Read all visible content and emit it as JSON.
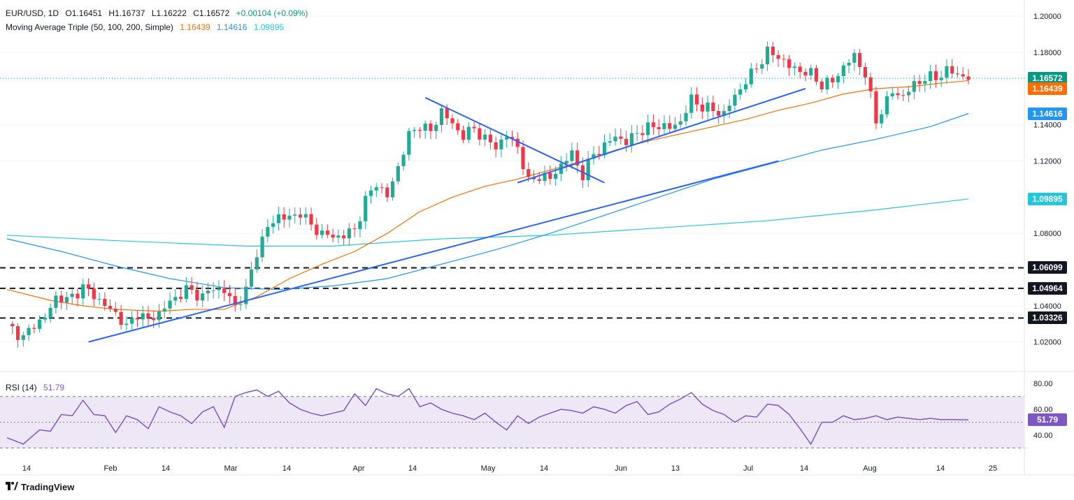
{
  "header": {
    "symbol": "EUR/USD, 1D",
    "open": "O1.16451",
    "high": "H1.16737",
    "low": "L1.16222",
    "close": "C1.16572",
    "change": "+0.00104 (+0.09%)",
    "ma_label": "Moving Average Triple (50, 100, 200, Simple)",
    "ma50": "1.16439",
    "ma100": "1.14616",
    "ma200": "1.09895"
  },
  "rsi_legend": {
    "label": "RSI (14)",
    "value": "51.79"
  },
  "branding": {
    "logo_text": "TradingView"
  },
  "colors": {
    "up": "#22ab94",
    "down": "#f23645",
    "ma50": "#ff6d00",
    "ma100": "#2196f3",
    "ma200": "#26c6da",
    "trend": "#2962ff",
    "rsi": "#7e57c2",
    "rsi_band": "#ede7f6",
    "last_price": "#089981"
  },
  "chart_data": {
    "type": "candlestick",
    "title": "EUR/USD, 1D",
    "y_axis_labels": [
      "1.20000",
      "1.18000",
      "1.14000",
      "1.12000",
      "1.08000",
      "1.04000",
      "1.02000"
    ],
    "x_axis_labels": [
      "14",
      "Feb",
      "14",
      "Mar",
      "14",
      "Apr",
      "14",
      "May",
      "14",
      "Jun",
      "13",
      "Jul",
      "14",
      "Aug",
      "14",
      "25"
    ],
    "ylim": [
      1.006,
      1.202
    ],
    "price_tags": [
      {
        "label": "1.16572",
        "value": 1.16572,
        "color": "#089981"
      },
      {
        "label": "1.16439",
        "value": 1.16439,
        "color": "#ff6d00"
      },
      {
        "label": "1.14616",
        "value": 1.14616,
        "color": "#2196f3"
      },
      {
        "label": "1.09895",
        "value": 1.09895,
        "color": "#26c6da"
      },
      {
        "label": "1.06099",
        "value": 1.06099,
        "color": "#131722"
      },
      {
        "label": "1.04964",
        "value": 1.04964,
        "color": "#131722"
      },
      {
        "label": "1.03326",
        "value": 1.03326,
        "color": "#131722"
      }
    ],
    "horizontal_levels": [
      1.06099,
      1.04964,
      1.03326
    ],
    "close_path": [
      [
        0,
        1.03
      ],
      [
        3,
        1.022
      ],
      [
        5,
        1.03
      ],
      [
        7,
        1.033
      ],
      [
        9,
        1.045
      ],
      [
        11,
        1.043
      ],
      [
        14,
        1.05
      ],
      [
        16,
        1.046
      ],
      [
        18,
        1.04
      ],
      [
        20,
        1.036
      ],
      [
        22,
        1.028
      ],
      [
        24,
        1.036
      ],
      [
        26,
        1.032
      ],
      [
        28,
        1.036
      ],
      [
        30,
        1.042
      ],
      [
        33,
        1.049
      ],
      [
        36,
        1.045
      ],
      [
        38,
        1.05
      ],
      [
        40,
        1.048
      ],
      [
        42,
        1.04
      ],
      [
        44,
        1.048
      ],
      [
        46,
        1.07
      ],
      [
        48,
        1.083
      ],
      [
        50,
        1.09
      ],
      [
        52,
        1.088
      ],
      [
        54,
        1.092
      ],
      [
        56,
        1.084
      ],
      [
        58,
        1.08
      ],
      [
        60,
        1.078
      ],
      [
        62,
        1.079
      ],
      [
        64,
        1.082
      ],
      [
        66,
        1.098
      ],
      [
        68,
        1.108
      ],
      [
        70,
        1.1
      ],
      [
        72,
        1.117
      ],
      [
        74,
        1.134
      ],
      [
        76,
        1.14
      ],
      [
        78,
        1.136
      ],
      [
        80,
        1.148
      ],
      [
        82,
        1.14
      ],
      [
        84,
        1.134
      ],
      [
        86,
        1.138
      ],
      [
        88,
        1.132
      ],
      [
        90,
        1.128
      ],
      [
        92,
        1.134
      ],
      [
        94,
        1.128
      ],
      [
        96,
        1.108
      ],
      [
        98,
        1.112
      ],
      [
        100,
        1.11
      ],
      [
        102,
        1.118
      ],
      [
        104,
        1.124
      ],
      [
        106,
        1.112
      ],
      [
        108,
        1.124
      ],
      [
        110,
        1.128
      ],
      [
        112,
        1.134
      ],
      [
        114,
        1.13
      ],
      [
        116,
        1.136
      ],
      [
        118,
        1.138
      ],
      [
        120,
        1.14
      ],
      [
        122,
        1.138
      ],
      [
        124,
        1.142
      ],
      [
        126,
        1.154
      ],
      [
        128,
        1.15
      ],
      [
        130,
        1.148
      ],
      [
        132,
        1.146
      ],
      [
        134,
        1.156
      ],
      [
        136,
        1.164
      ],
      [
        138,
        1.172
      ],
      [
        140,
        1.18
      ],
      [
        142,
        1.178
      ],
      [
        144,
        1.172
      ],
      [
        146,
        1.17
      ],
      [
        148,
        1.168
      ],
      [
        150,
        1.162
      ],
      [
        152,
        1.164
      ],
      [
        154,
        1.172
      ],
      [
        156,
        1.178
      ],
      [
        158,
        1.168
      ],
      [
        160,
        1.142
      ],
      [
        161,
        1.148
      ],
      [
        163,
        1.158
      ],
      [
        165,
        1.156
      ],
      [
        167,
        1.162
      ],
      [
        169,
        1.166
      ],
      [
        171,
        1.166
      ],
      [
        173,
        1.17
      ],
      [
        175,
        1.168
      ],
      [
        177,
        1.1657
      ]
    ],
    "ma50_path": [
      [
        0,
        1.049
      ],
      [
        8,
        1.043
      ],
      [
        14,
        1.04
      ],
      [
        20,
        1.038
      ],
      [
        28,
        1.037
      ],
      [
        34,
        1.038
      ],
      [
        40,
        1.038
      ],
      [
        46,
        1.045
      ],
      [
        52,
        1.055
      ],
      [
        58,
        1.063
      ],
      [
        64,
        1.07
      ],
      [
        70,
        1.08
      ],
      [
        76,
        1.092
      ],
      [
        82,
        1.1
      ],
      [
        88,
        1.106
      ],
      [
        94,
        1.11
      ],
      [
        100,
        1.115
      ],
      [
        106,
        1.12
      ],
      [
        112,
        1.126
      ],
      [
        118,
        1.131
      ],
      [
        124,
        1.135
      ],
      [
        130,
        1.139
      ],
      [
        136,
        1.143
      ],
      [
        142,
        1.148
      ],
      [
        148,
        1.152
      ],
      [
        154,
        1.157
      ],
      [
        160,
        1.16
      ],
      [
        166,
        1.161
      ],
      [
        172,
        1.163
      ],
      [
        177,
        1.1644
      ]
    ],
    "ma100_path": [
      [
        0,
        1.077
      ],
      [
        10,
        1.07
      ],
      [
        20,
        1.062
      ],
      [
        30,
        1.055
      ],
      [
        40,
        1.05
      ],
      [
        50,
        1.049
      ],
      [
        60,
        1.051
      ],
      [
        70,
        1.055
      ],
      [
        80,
        1.063
      ],
      [
        90,
        1.071
      ],
      [
        100,
        1.08
      ],
      [
        110,
        1.09
      ],
      [
        120,
        1.1
      ],
      [
        130,
        1.11
      ],
      [
        140,
        1.118
      ],
      [
        150,
        1.126
      ],
      [
        160,
        1.132
      ],
      [
        170,
        1.139
      ],
      [
        177,
        1.1462
      ]
    ],
    "ma200_path": [
      [
        0,
        1.079
      ],
      [
        20,
        1.076
      ],
      [
        44,
        1.073
      ],
      [
        60,
        1.073
      ],
      [
        80,
        1.077
      ],
      [
        100,
        1.079
      ],
      [
        120,
        1.083
      ],
      [
        140,
        1.087
      ],
      [
        160,
        1.093
      ],
      [
        177,
        1.099
      ]
    ],
    "trendlines": [
      {
        "from": [
          15,
          1.02
        ],
        "to": [
          142,
          1.12
        ]
      },
      {
        "from": [
          77,
          1.155
        ],
        "to": [
          110,
          1.108
        ]
      },
      {
        "from": [
          94,
          1.108
        ],
        "to": [
          147,
          1.16
        ]
      }
    ],
    "rsi": {
      "levels": [
        80.0,
        60.0,
        40.0
      ],
      "band": [
        30,
        70
      ],
      "mid": 50,
      "last": 51.79,
      "path": [
        [
          0,
          38
        ],
        [
          3,
          33
        ],
        [
          6,
          44
        ],
        [
          8,
          43
        ],
        [
          10,
          56
        ],
        [
          12,
          55
        ],
        [
          14,
          67
        ],
        [
          16,
          56
        ],
        [
          18,
          55
        ],
        [
          20,
          42
        ],
        [
          22,
          55
        ],
        [
          24,
          52
        ],
        [
          26,
          45
        ],
        [
          28,
          62
        ],
        [
          30,
          58
        ],
        [
          32,
          55
        ],
        [
          34,
          49
        ],
        [
          36,
          58
        ],
        [
          38,
          62
        ],
        [
          40,
          46
        ],
        [
          42,
          70
        ],
        [
          44,
          73
        ],
        [
          46,
          75
        ],
        [
          48,
          70
        ],
        [
          50,
          74
        ],
        [
          52,
          65
        ],
        [
          54,
          60
        ],
        [
          56,
          57
        ],
        [
          58,
          55
        ],
        [
          60,
          57
        ],
        [
          62,
          59
        ],
        [
          64,
          72
        ],
        [
          66,
          63
        ],
        [
          68,
          76
        ],
        [
          70,
          72
        ],
        [
          72,
          70
        ],
        [
          74,
          76
        ],
        [
          76,
          62
        ],
        [
          78,
          65
        ],
        [
          80,
          60
        ],
        [
          82,
          57
        ],
        [
          84,
          55
        ],
        [
          86,
          52
        ],
        [
          88,
          57
        ],
        [
          90,
          50
        ],
        [
          92,
          44
        ],
        [
          94,
          55
        ],
        [
          96,
          49
        ],
        [
          98,
          54
        ],
        [
          100,
          57
        ],
        [
          102,
          60
        ],
        [
          104,
          59
        ],
        [
          106,
          57
        ],
        [
          108,
          62
        ],
        [
          110,
          60
        ],
        [
          112,
          57
        ],
        [
          114,
          63
        ],
        [
          116,
          66
        ],
        [
          118,
          56
        ],
        [
          120,
          58
        ],
        [
          122,
          64
        ],
        [
          124,
          68
        ],
        [
          126,
          73
        ],
        [
          128,
          64
        ],
        [
          130,
          59
        ],
        [
          132,
          56
        ],
        [
          134,
          50
        ],
        [
          136,
          55
        ],
        [
          138,
          54
        ],
        [
          140,
          64
        ],
        [
          142,
          63
        ],
        [
          144,
          56
        ],
        [
          146,
          45
        ],
        [
          148,
          33
        ],
        [
          150,
          50
        ],
        [
          152,
          50
        ],
        [
          154,
          55
        ],
        [
          156,
          52
        ],
        [
          158,
          53
        ],
        [
          160,
          55
        ],
        [
          162,
          52
        ],
        [
          164,
          54
        ],
        [
          166,
          53
        ],
        [
          168,
          52
        ],
        [
          170,
          53
        ],
        [
          172,
          52
        ],
        [
          174,
          52
        ],
        [
          177,
          51.79
        ]
      ],
      "y_axis_labels": [
        "80.00",
        "60.00",
        "40.00"
      ]
    }
  }
}
